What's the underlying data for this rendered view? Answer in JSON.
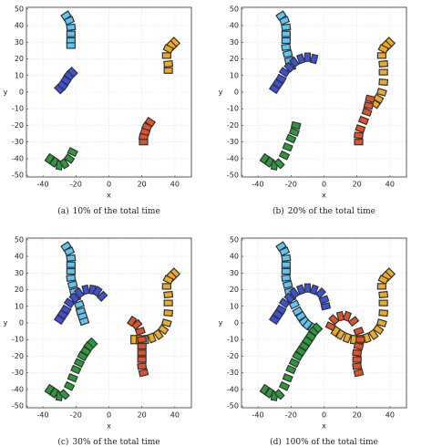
{
  "chart_data": [
    {
      "type": "scatter",
      "caption_label": "(a)",
      "caption": "10% of the total time",
      "xlabel": "x",
      "ylabel": "y",
      "xlim": [
        -50,
        50
      ],
      "ylim": [
        -51,
        51
      ],
      "xticks": [
        -40,
        -20,
        0,
        20,
        40
      ],
      "yticks": [
        -50,
        -40,
        -30,
        -20,
        -10,
        0,
        10,
        20,
        30,
        40,
        50
      ],
      "grid": true,
      "series": [
        {
          "color": "#5ec4f0",
          "x": [
            -26,
            -24,
            -23,
            -23,
            -23,
            -23
          ],
          "y": [
            46,
            43,
            39,
            35,
            31,
            28
          ]
        },
        {
          "color": "#3c50d8",
          "x": [
            -30,
            -28,
            -26,
            -24,
            -22
          ],
          "y": [
            2,
            4,
            7,
            10,
            12
          ]
        },
        {
          "color": "#f0aa22",
          "x": [
            40,
            38,
            36,
            35,
            36,
            36
          ],
          "y": [
            30,
            28,
            26,
            22,
            17,
            13
          ]
        },
        {
          "color": "#e0522a",
          "x": [
            25,
            23,
            22,
            21,
            21
          ],
          "y": [
            -18,
            -21,
            -24,
            -27,
            -30
          ]
        },
        {
          "color": "#2a9a3a",
          "x": [
            -36,
            -33,
            -30,
            -27,
            -24,
            -22
          ],
          "y": [
            -40,
            -42,
            -44,
            -43,
            -40,
            -36
          ]
        }
      ]
    },
    {
      "type": "scatter",
      "caption_label": "(b)",
      "caption": "20% of the total time",
      "xlabel": "x",
      "ylabel": "y",
      "xlim": [
        -50,
        50
      ],
      "ylim": [
        -51,
        51
      ],
      "xticks": [
        -40,
        -20,
        0,
        20,
        40
      ],
      "yticks": [
        -50,
        -40,
        -30,
        -20,
        -10,
        0,
        10,
        20,
        30,
        40,
        50
      ],
      "grid": true,
      "series": [
        {
          "color": "#5ec4f0",
          "x": [
            -26,
            -24,
            -23,
            -23,
            -23,
            -23,
            -22,
            -21,
            -20
          ],
          "y": [
            46,
            43,
            39,
            35,
            31,
            27,
            23,
            19,
            15
          ]
        },
        {
          "color": "#3c50d8",
          "x": [
            -30,
            -28,
            -26,
            -24,
            -21,
            -18,
            -14,
            -10,
            -6
          ],
          "y": [
            2,
            5,
            8,
            12,
            15,
            18,
            20,
            21,
            20
          ]
        },
        {
          "color": "#f0aa22",
          "x": [
            40,
            38,
            36,
            35,
            36,
            36,
            36,
            35,
            33,
            31
          ],
          "y": [
            30,
            28,
            26,
            22,
            17,
            12,
            6,
            0,
            -4,
            -7
          ]
        },
        {
          "color": "#e0522a",
          "x": [
            21,
            21,
            22,
            24,
            26,
            27,
            28
          ],
          "y": [
            -30,
            -26,
            -22,
            -17,
            -12,
            -8,
            -4
          ]
        },
        {
          "color": "#2a9a3a",
          "x": [
            -36,
            -33,
            -30,
            -27,
            -24,
            -22,
            -20,
            -18,
            -17
          ],
          "y": [
            -40,
            -42,
            -44,
            -43,
            -38,
            -33,
            -28,
            -24,
            -20
          ]
        }
      ]
    },
    {
      "type": "scatter",
      "caption_label": "(c)",
      "caption": "30% of the total time",
      "xlabel": "x",
      "ylabel": "y",
      "xlim": [
        -50,
        50
      ],
      "ylim": [
        -51,
        51
      ],
      "xticks": [
        -40,
        -20,
        0,
        20,
        40
      ],
      "yticks": [
        -50,
        -40,
        -30,
        -20,
        -10,
        0,
        10,
        20,
        30,
        40,
        50
      ],
      "grid": true,
      "series": [
        {
          "color": "#5ec4f0",
          "x": [
            -26,
            -24,
            -23,
            -23,
            -23,
            -23,
            -22,
            -21,
            -20,
            -18,
            -17,
            -16,
            -15
          ],
          "y": [
            46,
            43,
            39,
            35,
            31,
            27,
            23,
            19,
            15,
            11,
            7,
            4,
            1
          ]
        },
        {
          "color": "#3c50d8",
          "x": [
            -30,
            -28,
            -26,
            -24,
            -21,
            -18,
            -14,
            -10,
            -7,
            -4
          ],
          "y": [
            2,
            5,
            8,
            12,
            15,
            18,
            20,
            20,
            19,
            16
          ]
        },
        {
          "color": "#f0aa22",
          "x": [
            40,
            38,
            36,
            35,
            36,
            36,
            36,
            35,
            33,
            30,
            26,
            22,
            18,
            15
          ],
          "y": [
            30,
            28,
            26,
            22,
            17,
            12,
            6,
            0,
            -4,
            -7,
            -9,
            -10,
            -10,
            -10
          ]
        },
        {
          "color": "#e0522a",
          "x": [
            21,
            20,
            20,
            20,
            20,
            20,
            19,
            17,
            14
          ],
          "y": [
            -30,
            -26,
            -22,
            -18,
            -14,
            -10,
            -5,
            -1,
            1
          ]
        },
        {
          "color": "#2a9a3a",
          "x": [
            -36,
            -33,
            -30,
            -27,
            -24,
            -22,
            -20,
            -18,
            -16,
            -14,
            -12,
            -10
          ],
          "y": [
            -40,
            -42,
            -44,
            -43,
            -38,
            -33,
            -28,
            -24,
            -20,
            -17,
            -14,
            -12
          ]
        }
      ]
    },
    {
      "type": "scatter",
      "caption_label": "(d)",
      "caption": "100% of the total time",
      "xlabel": "x",
      "ylabel": "y",
      "xlim": [
        -50,
        50
      ],
      "ylim": [
        -51,
        51
      ],
      "xticks": [
        -40,
        -20,
        0,
        20,
        40
      ],
      "yticks": [
        -50,
        -40,
        -30,
        -20,
        -10,
        0,
        10,
        20,
        30,
        40,
        50
      ],
      "grid": true,
      "series": [
        {
          "color": "#5ec4f0",
          "x": [
            -26,
            -24,
            -23,
            -23,
            -23,
            -23,
            -22,
            -21,
            -20,
            -18,
            -16,
            -14,
            -12,
            -10,
            -7
          ],
          "y": [
            46,
            43,
            39,
            35,
            31,
            27,
            23,
            19,
            15,
            11,
            7,
            4,
            1,
            -1,
            -3
          ]
        },
        {
          "color": "#3c50d8",
          "x": [
            -30,
            -28,
            -26,
            -24,
            -21,
            -18,
            -14,
            -10,
            -6,
            -2,
            0,
            1
          ],
          "y": [
            2,
            5,
            8,
            12,
            15,
            18,
            20,
            21,
            20,
            18,
            14,
            10
          ]
        },
        {
          "color": "#f0aa22",
          "x": [
            40,
            38,
            36,
            35,
            36,
            36,
            36,
            35,
            33,
            30,
            26,
            22,
            18,
            14,
            10,
            7
          ],
          "y": [
            30,
            28,
            26,
            22,
            17,
            12,
            6,
            0,
            -4,
            -7,
            -9,
            -10,
            -10,
            -9,
            -7,
            -5
          ]
        },
        {
          "color": "#e0522a",
          "x": [
            21,
            20,
            20,
            20,
            21,
            22,
            21,
            18,
            14,
            10,
            6,
            4
          ],
          "y": [
            -30,
            -26,
            -22,
            -18,
            -14,
            -10,
            -5,
            1,
            4,
            4,
            2,
            -2
          ]
        },
        {
          "color": "#2a9a3a",
          "x": [
            -36,
            -33,
            -30,
            -27,
            -24,
            -22,
            -20,
            -18,
            -16,
            -14,
            -12,
            -10,
            -8,
            -6,
            -4
          ],
          "y": [
            -40,
            -42,
            -44,
            -43,
            -38,
            -33,
            -28,
            -24,
            -20,
            -17,
            -14,
            -11,
            -8,
            -5,
            -3
          ]
        }
      ]
    }
  ]
}
